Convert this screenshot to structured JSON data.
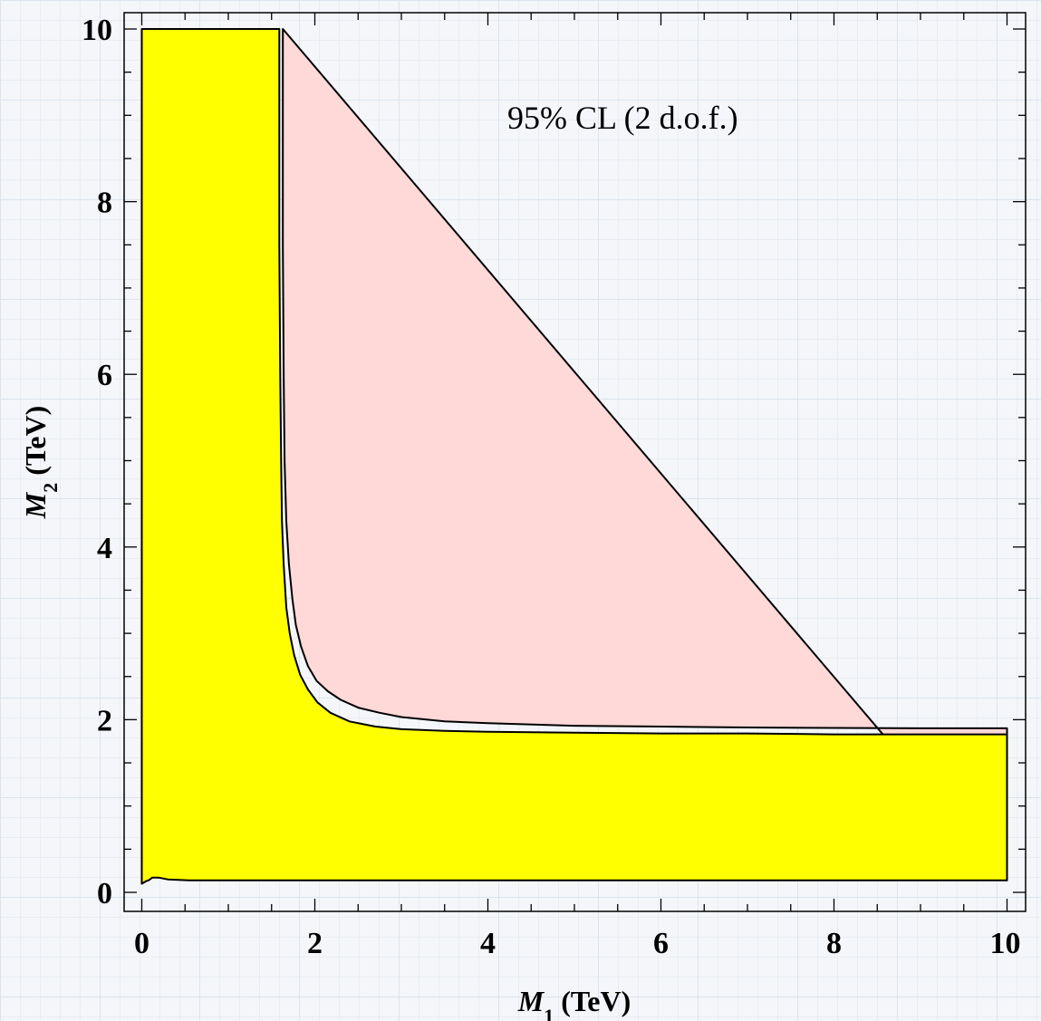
{
  "chart_data": {
    "type": "area",
    "title": "",
    "annotation": "95% CL (2 d.o.f.)",
    "xlabel": {
      "symbol": "M",
      "sub": "1",
      "unit": " (TeV)"
    },
    "ylabel": {
      "symbol": "M",
      "sub": "2",
      "unit": " (TeV)"
    },
    "xlim": [
      0,
      10
    ],
    "ylim": [
      0,
      10
    ],
    "xticks": [
      "0",
      "2",
      "4",
      "6",
      "8",
      "10"
    ],
    "yticks": [
      "0",
      "2",
      "4",
      "6",
      "8",
      "10"
    ],
    "grid": false,
    "colors": {
      "region_fill": "#ffff00",
      "band_fill": "#ffd8d8",
      "outline": "#000000"
    },
    "series": [
      {
        "role": "outer-region",
        "x": [
          1.63,
          1.63,
          1.64,
          1.65,
          1.67,
          1.7,
          1.74,
          1.78,
          1.84,
          1.92,
          2.02,
          2.15,
          2.3,
          2.5,
          2.75,
          3.0,
          3.5,
          4.0,
          5.0,
          6.0,
          7.0,
          8.0,
          9.0,
          10.0,
          10.0
        ],
        "y": [
          10.0,
          7.5,
          6.0,
          5.0,
          4.3,
          3.8,
          3.4,
          3.1,
          2.85,
          2.62,
          2.45,
          2.33,
          2.23,
          2.14,
          2.08,
          2.03,
          1.98,
          1.96,
          1.93,
          1.92,
          1.91,
          1.905,
          1.9,
          1.9,
          0.14
        ]
      },
      {
        "role": "inner-region",
        "x": [
          0,
          0,
          1.59,
          1.59,
          1.6,
          1.61,
          1.62,
          1.64,
          1.67,
          1.71,
          1.76,
          1.83,
          1.92,
          2.03,
          2.18,
          2.4,
          2.7,
          3.0,
          3.5,
          4.0,
          5.0,
          6.0,
          7.0,
          8.0,
          9.0,
          10.0,
          10.0,
          0.55,
          0.3,
          0.2,
          0.12,
          0.08,
          0.05,
          0.0
        ],
        "y": [
          0.1,
          10.0,
          10.0,
          7.5,
          6.0,
          5.0,
          4.3,
          3.8,
          3.3,
          3.0,
          2.75,
          2.52,
          2.35,
          2.2,
          2.08,
          1.98,
          1.92,
          1.89,
          1.87,
          1.86,
          1.85,
          1.84,
          1.84,
          1.83,
          1.83,
          1.83,
          0.14,
          0.14,
          0.15,
          0.17,
          0.17,
          0.14,
          0.13,
          0.1
        ]
      }
    ]
  }
}
